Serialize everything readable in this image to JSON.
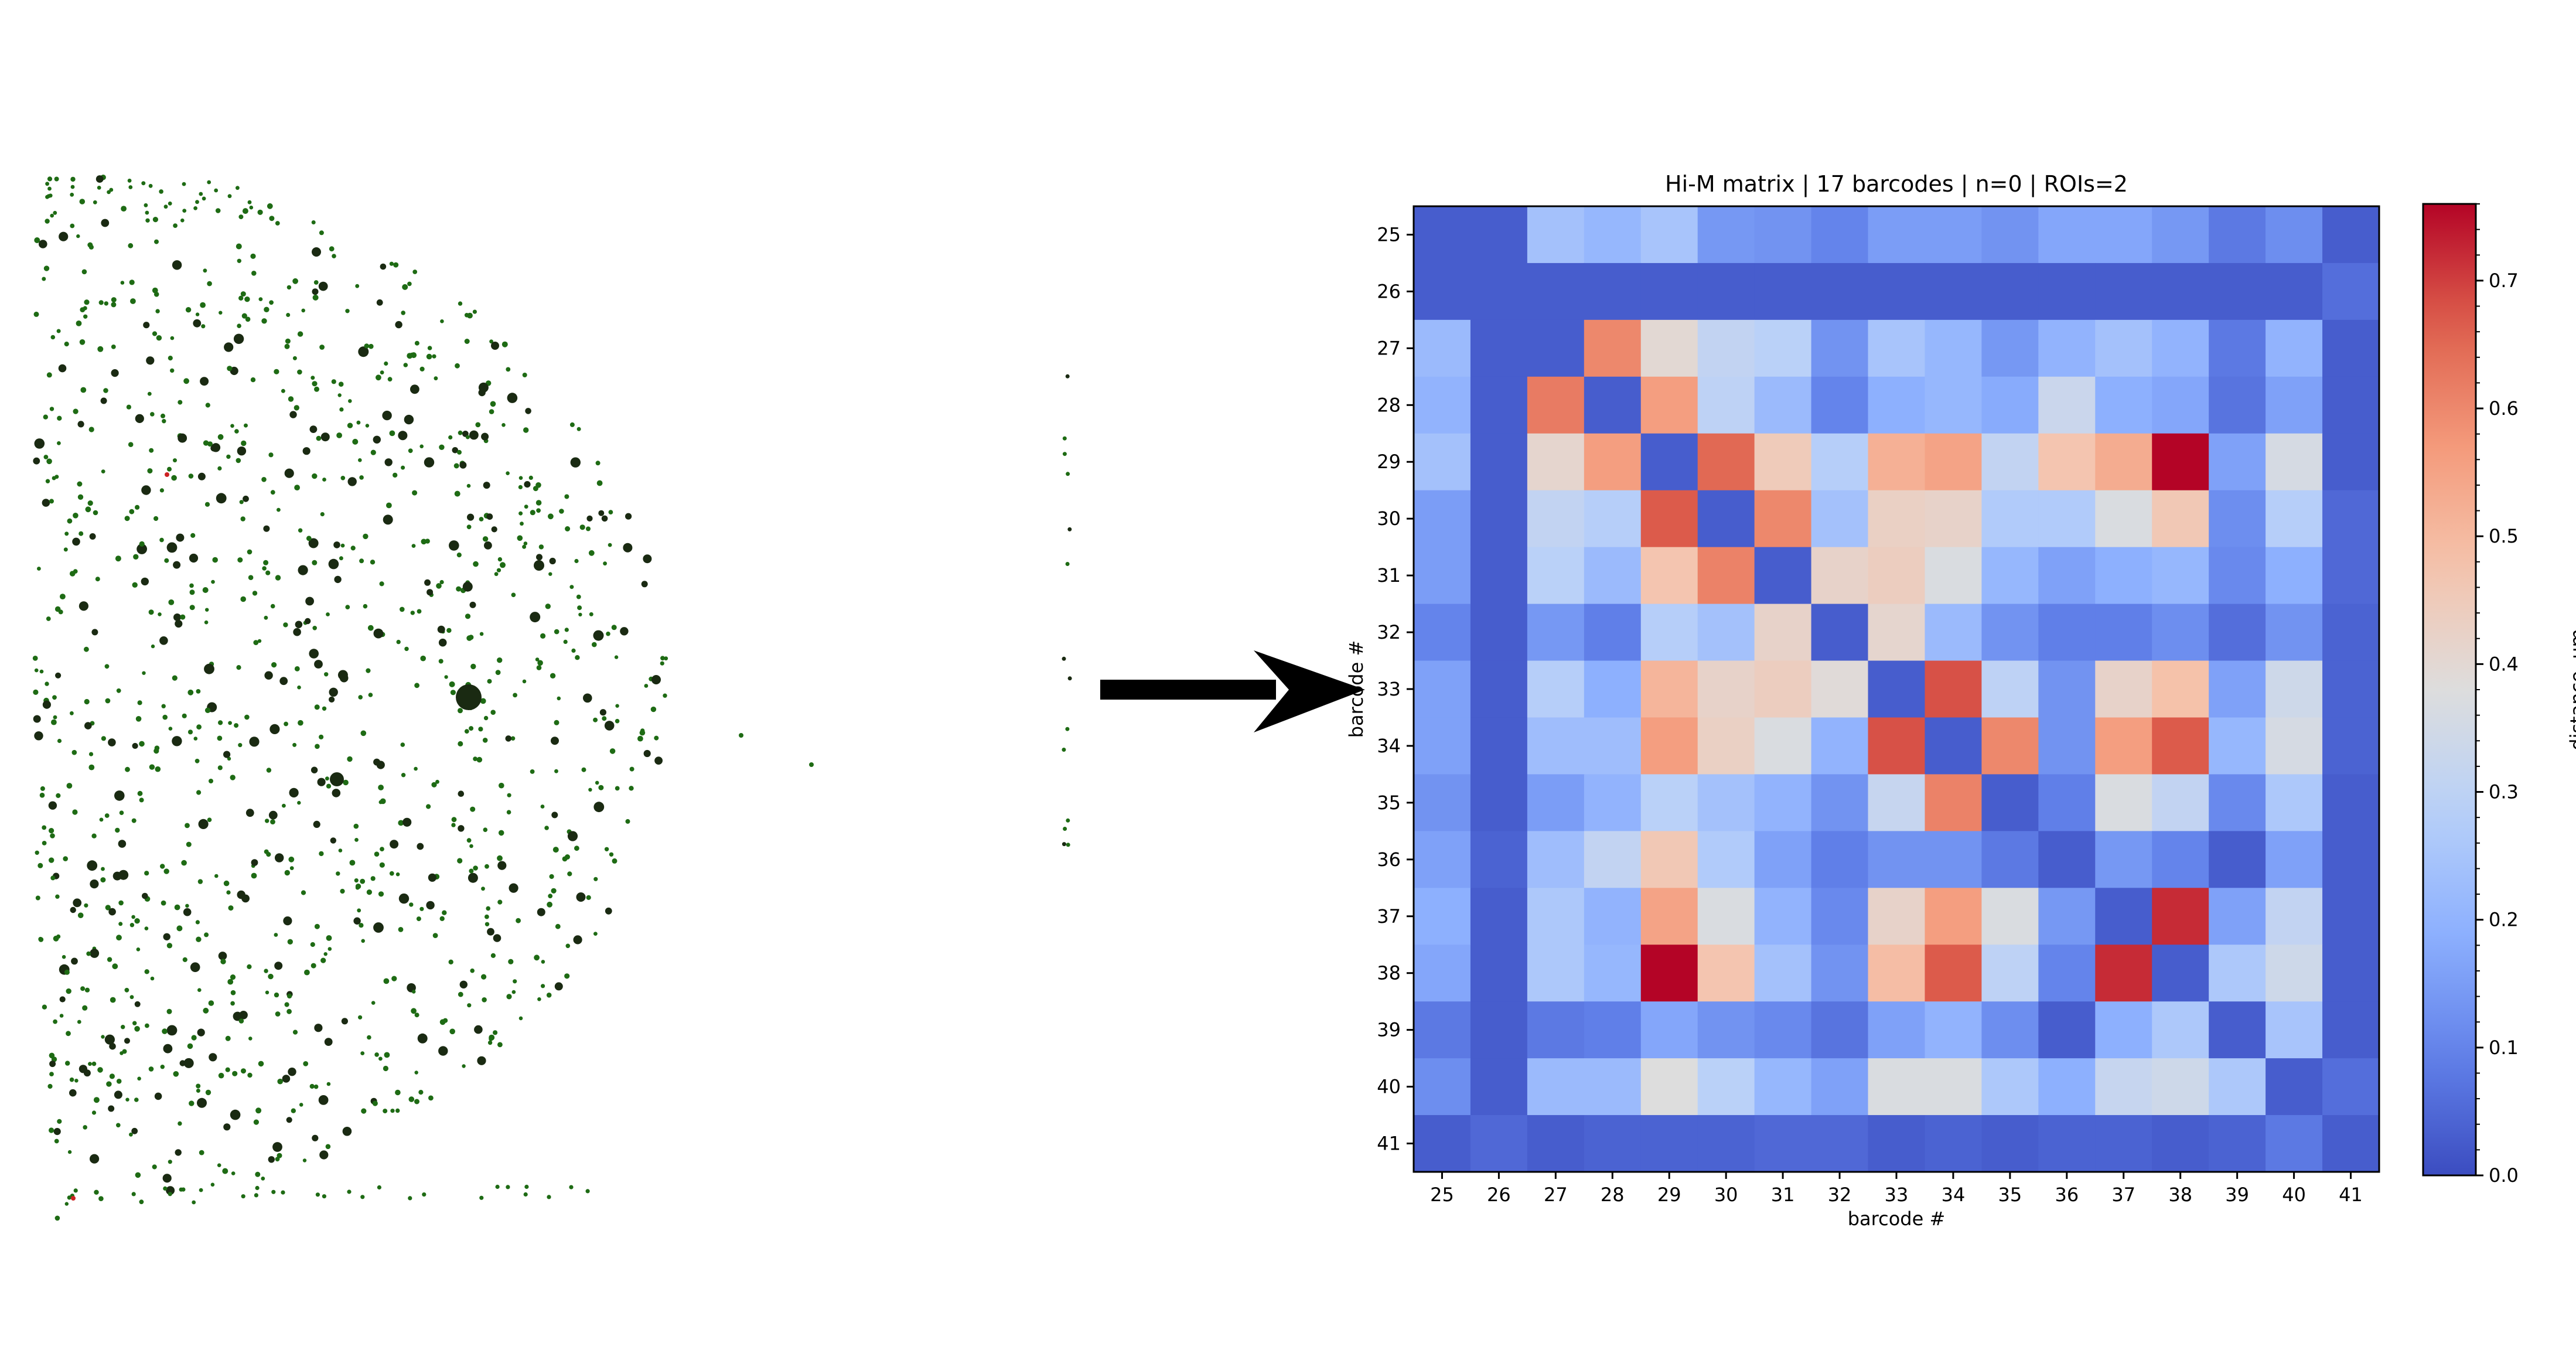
{
  "chart_data": {
    "type": "heatmap",
    "title": "Hi-M matrix | 17 barcodes | n=0 | ROIs=2",
    "xlabel": "barcode #",
    "ylabel": "barcode #",
    "x_categories": [
      "25",
      "26",
      "27",
      "28",
      "29",
      "30",
      "31",
      "32",
      "33",
      "34",
      "35",
      "36",
      "37",
      "38",
      "39",
      "40",
      "41"
    ],
    "y_categories": [
      "25",
      "26",
      "27",
      "28",
      "29",
      "30",
      "31",
      "32",
      "33",
      "34",
      "35",
      "36",
      "37",
      "38",
      "39",
      "40",
      "41"
    ],
    "values": [
      [
        0.03,
        0.03,
        0.24,
        0.21,
        0.25,
        0.14,
        0.13,
        0.1,
        0.15,
        0.15,
        0.13,
        0.17,
        0.17,
        0.14,
        0.08,
        0.12,
        0.03
      ],
      [
        0.03,
        0.03,
        0.03,
        0.03,
        0.03,
        0.03,
        0.03,
        0.03,
        0.03,
        0.03,
        0.03,
        0.03,
        0.03,
        0.03,
        0.03,
        0.03,
        0.06
      ],
      [
        0.22,
        0.03,
        0.03,
        0.6,
        0.4,
        0.31,
        0.29,
        0.13,
        0.25,
        0.21,
        0.14,
        0.2,
        0.24,
        0.2,
        0.08,
        0.2,
        0.03
      ],
      [
        0.2,
        0.03,
        0.62,
        0.03,
        0.56,
        0.3,
        0.22,
        0.1,
        0.19,
        0.21,
        0.18,
        0.33,
        0.19,
        0.17,
        0.07,
        0.16,
        0.03
      ],
      [
        0.24,
        0.03,
        0.41,
        0.56,
        0.03,
        0.65,
        0.45,
        0.28,
        0.52,
        0.55,
        0.31,
        0.47,
        0.53,
        0.76,
        0.16,
        0.36,
        0.03
      ],
      [
        0.15,
        0.03,
        0.31,
        0.28,
        0.67,
        0.03,
        0.6,
        0.24,
        0.43,
        0.42,
        0.27,
        0.27,
        0.37,
        0.46,
        0.12,
        0.28,
        0.05
      ],
      [
        0.15,
        0.03,
        0.29,
        0.22,
        0.47,
        0.61,
        0.03,
        0.42,
        0.44,
        0.37,
        0.21,
        0.16,
        0.19,
        0.21,
        0.11,
        0.19,
        0.05
      ],
      [
        0.1,
        0.03,
        0.14,
        0.09,
        0.28,
        0.24,
        0.42,
        0.03,
        0.41,
        0.22,
        0.13,
        0.09,
        0.09,
        0.12,
        0.06,
        0.13,
        0.04
      ],
      [
        0.16,
        0.03,
        0.28,
        0.19,
        0.51,
        0.42,
        0.44,
        0.39,
        0.03,
        0.68,
        0.3,
        0.13,
        0.42,
        0.48,
        0.16,
        0.34,
        0.04
      ],
      [
        0.16,
        0.03,
        0.23,
        0.23,
        0.56,
        0.43,
        0.37,
        0.2,
        0.68,
        0.03,
        0.6,
        0.13,
        0.56,
        0.67,
        0.21,
        0.36,
        0.04
      ],
      [
        0.13,
        0.03,
        0.15,
        0.2,
        0.29,
        0.24,
        0.2,
        0.13,
        0.32,
        0.61,
        0.03,
        0.09,
        0.37,
        0.31,
        0.11,
        0.26,
        0.03
      ],
      [
        0.16,
        0.04,
        0.23,
        0.31,
        0.46,
        0.27,
        0.16,
        0.09,
        0.13,
        0.13,
        0.08,
        0.03,
        0.14,
        0.1,
        0.03,
        0.16,
        0.03
      ],
      [
        0.19,
        0.03,
        0.26,
        0.2,
        0.55,
        0.37,
        0.2,
        0.11,
        0.42,
        0.56,
        0.37,
        0.14,
        0.03,
        0.72,
        0.16,
        0.31,
        0.03
      ],
      [
        0.17,
        0.03,
        0.26,
        0.21,
        0.76,
        0.47,
        0.24,
        0.13,
        0.49,
        0.67,
        0.3,
        0.1,
        0.72,
        0.03,
        0.26,
        0.34,
        0.03
      ],
      [
        0.08,
        0.03,
        0.08,
        0.09,
        0.17,
        0.13,
        0.11,
        0.07,
        0.16,
        0.2,
        0.12,
        0.03,
        0.19,
        0.26,
        0.03,
        0.25,
        0.03
      ],
      [
        0.12,
        0.03,
        0.22,
        0.22,
        0.38,
        0.29,
        0.21,
        0.16,
        0.37,
        0.37,
        0.26,
        0.19,
        0.32,
        0.34,
        0.26,
        0.03,
        0.06
      ],
      [
        0.03,
        0.05,
        0.03,
        0.04,
        0.04,
        0.04,
        0.05,
        0.05,
        0.03,
        0.04,
        0.03,
        0.04,
        0.04,
        0.03,
        0.04,
        0.08,
        0.03
      ]
    ],
    "colormap": "coolwarm",
    "colorbar": {
      "label": "distance, um",
      "range": [
        0.0,
        0.76
      ],
      "ticks": [
        "0.0",
        "0.1",
        "0.2",
        "0.3",
        "0.4",
        "0.5",
        "0.6",
        "0.7"
      ]
    },
    "grid": false,
    "legend": "none"
  },
  "colors": {
    "arrow": "#000000",
    "spot_green": "#1e6b14",
    "spot_dark": "#1a2a12",
    "spot_red": "#cc2222"
  },
  "icons": {
    "arrow": "right-arrow-icon"
  }
}
